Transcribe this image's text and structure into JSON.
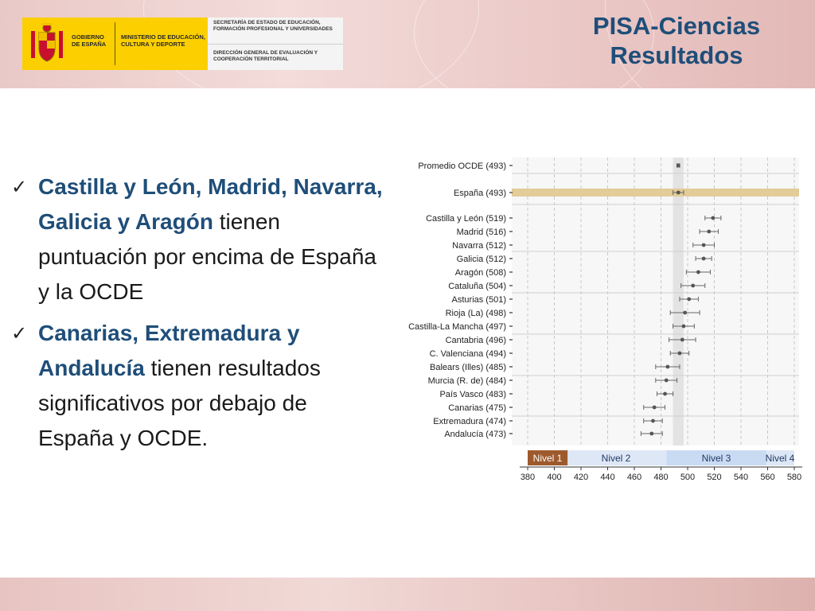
{
  "logo": {
    "gobierno": "GOBIERNO DE ESPAÑA",
    "ministerio": "MINISTERIO DE EDUCACIÓN, CULTURA Y DEPORTE",
    "secretaria": "SECRETARÍA DE ESTADO DE EDUCACIÓN, FORMACIÓN PROFESIONAL Y UNIVERSIDADES",
    "direccion": "DIRECCIÓN GENERAL DE EVALUACIÓN Y COOPERACIÓN TERRITORIAL"
  },
  "title": {
    "line1": "PISA-Ciencias",
    "line2": "Resultados"
  },
  "bullets": [
    {
      "highlight": "Castilla y León, Madrid, Navarra, Galicia y Aragón",
      "rest": " tienen puntuación por encima de España y la OCDE"
    },
    {
      "highlight": "Canarias, Extremadura y Andalucía",
      "rest": " tienen resultados significativos por debajo de España y OCDE."
    }
  ],
  "colors": {
    "title": "#1f4e79",
    "highlight_bar": "#e2cc98",
    "nivel1": "#9e5a2c",
    "nivel_light": "#dde7f6",
    "nivel_mid": "#c9dbf3",
    "point": "#555555"
  },
  "chart_data": {
    "type": "scatter",
    "x_ticks": [
      380,
      400,
      420,
      440,
      460,
      480,
      500,
      520,
      540,
      560,
      580
    ],
    "xlim": [
      380,
      580
    ],
    "reference_band": [
      489,
      497
    ],
    "highlight_row": "España (493)",
    "rows": [
      {
        "label": "Promedio OCDE (493)",
        "value": 493,
        "low": 492,
        "high": 494
      },
      {
        "label": "España (493)",
        "value": 493,
        "low": 489,
        "high": 497
      },
      {
        "label": "Castilla y León (519)",
        "value": 519,
        "low": 513,
        "high": 525
      },
      {
        "label": "Madrid (516)",
        "value": 516,
        "low": 509,
        "high": 523
      },
      {
        "label": "Navarra (512)",
        "value": 512,
        "low": 504,
        "high": 520
      },
      {
        "label": "Galicia (512)",
        "value": 512,
        "low": 506,
        "high": 518
      },
      {
        "label": "Aragón (508)",
        "value": 508,
        "low": 499,
        "high": 517
      },
      {
        "label": "Cataluña (504)",
        "value": 504,
        "low": 495,
        "high": 513
      },
      {
        "label": "Asturias (501)",
        "value": 501,
        "low": 494,
        "high": 508
      },
      {
        "label": "Rioja (La) (498)",
        "value": 498,
        "low": 487,
        "high": 509
      },
      {
        "label": "Castilla-La Mancha (497)",
        "value": 497,
        "low": 489,
        "high": 505
      },
      {
        "label": "Cantabria (496)",
        "value": 496,
        "low": 486,
        "high": 506
      },
      {
        "label": "C. Valenciana (494)",
        "value": 494,
        "low": 487,
        "high": 501
      },
      {
        "label": "Balears (Illes) (485)",
        "value": 485,
        "low": 476,
        "high": 494
      },
      {
        "label": "Murcia (R. de) (484)",
        "value": 484,
        "low": 476,
        "high": 492
      },
      {
        "label": "País Vasco (483)",
        "value": 483,
        "low": 477,
        "high": 489
      },
      {
        "label": "Canarias (475)",
        "value": 475,
        "low": 467,
        "high": 483
      },
      {
        "label": "Extremadura (474)",
        "value": 474,
        "low": 467,
        "high": 481
      },
      {
        "label": "Andalucía (473)",
        "value": 473,
        "low": 465,
        "high": 481
      }
    ],
    "levels": [
      {
        "label": "Nivel 1",
        "from": 380,
        "to": 410
      },
      {
        "label": "Nivel 2",
        "from": 410,
        "to": 484
      },
      {
        "label": "Nivel 3",
        "from": 484,
        "to": 559
      },
      {
        "label": "Nivel 4",
        "from": 559,
        "to": 580
      }
    ]
  }
}
